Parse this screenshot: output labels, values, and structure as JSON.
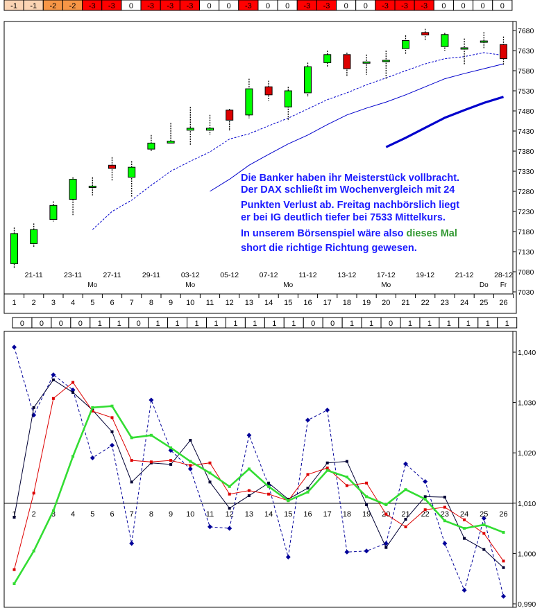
{
  "colors": {
    "orange": "#f79646",
    "light_orange": "#fbd4b4",
    "red": "#ff0000",
    "candle_up": "#00ff00",
    "candle_down": "#dd0000",
    "ma_blue": "#0000cc",
    "note_blue": "#1a1aff",
    "note_green": "#339933",
    "osc_green": "#33dd33",
    "osc_red": "#dd0000",
    "osc_black": "#000033",
    "osc_dashed": "#000099"
  },
  "top_signal_row": [
    {
      "v": "-1",
      "c": "light_orange"
    },
    {
      "v": "-1",
      "c": "light_orange"
    },
    {
      "v": "-2",
      "c": "orange"
    },
    {
      "v": "-2",
      "c": "orange"
    },
    {
      "v": "-3",
      "c": "red"
    },
    {
      "v": "-3",
      "c": "red"
    },
    {
      "v": "0",
      "c": "white"
    },
    {
      "v": "-3",
      "c": "red"
    },
    {
      "v": "-3",
      "c": "red"
    },
    {
      "v": "-3",
      "c": "red"
    },
    {
      "v": "0",
      "c": "white"
    },
    {
      "v": "0",
      "c": "white"
    },
    {
      "v": "-3",
      "c": "red"
    },
    {
      "v": "0",
      "c": "white"
    },
    {
      "v": "0",
      "c": "white"
    },
    {
      "v": "-3",
      "c": "red"
    },
    {
      "v": "-3",
      "c": "red"
    },
    {
      "v": "0",
      "c": "white"
    },
    {
      "v": "0",
      "c": "white"
    },
    {
      "v": "-3",
      "c": "red"
    },
    {
      "v": "-3",
      "c": "red"
    },
    {
      "v": "-3",
      "c": "red"
    },
    {
      "v": "0",
      "c": "white"
    },
    {
      "v": "0",
      "c": "white"
    },
    {
      "v": "0",
      "c": "white"
    },
    {
      "v": "0",
      "c": "white"
    }
  ],
  "middle_signal_row": [
    "0",
    "0",
    "0",
    "0",
    "1",
    "1",
    "0",
    "1",
    "1",
    "1",
    "1",
    "1",
    "1",
    "1",
    "1",
    "0",
    "0",
    "1",
    "1",
    "0",
    "1",
    "1",
    "1",
    "1",
    "1",
    "1"
  ],
  "note": {
    "lines": [
      "Die Banker haben ihr Meisterstück vollbracht.",
      "Der DAX schließt im Wochenvergleich mit 24",
      "Punkten Verlust ab. Freitag nachbörslich liegt",
      "er bei IG deutlich tiefer bei 7533 Mittelkurs."
    ],
    "line5_a": "In unserem  Börsenspiel wäre also ",
    "line5_b": "dieses Mal",
    "line6": "short die richtige Richtung gewesen."
  },
  "chart_data": [
    {
      "type": "candlestick",
      "title": "",
      "ylim": [
        7030,
        7680
      ],
      "y_ticks": [
        "7680",
        "7630",
        "7580",
        "7530",
        "7480",
        "7430",
        "7380",
        "7330",
        "7280",
        "7230",
        "7180",
        "7130",
        "7080",
        "7030"
      ],
      "x": [
        1,
        2,
        3,
        4,
        5,
        6,
        7,
        8,
        9,
        10,
        11,
        12,
        13,
        14,
        15,
        16,
        17,
        18,
        19,
        20,
        21,
        22,
        23,
        24,
        25,
        26
      ],
      "date_labels": [
        {
          "day": 2,
          "label": "21-11"
        },
        {
          "day": 4,
          "label": "23-11"
        },
        {
          "day": 6,
          "label": "27-11"
        },
        {
          "day": 8,
          "label": "29-11"
        },
        {
          "day": 10,
          "label": "03-12"
        },
        {
          "day": 12,
          "label": "05-12"
        },
        {
          "day": 14,
          "label": "07-12"
        },
        {
          "day": 16,
          "label": "11-12"
        },
        {
          "day": 18,
          "label": "13-12"
        },
        {
          "day": 20,
          "label": "17-12"
        },
        {
          "day": 22,
          "label": "19-12"
        },
        {
          "day": 24,
          "label": "21-12"
        },
        {
          "day": 26,
          "label": "28-12"
        }
      ],
      "weekday_labels": [
        {
          "day": 5,
          "label": "Mo"
        },
        {
          "day": 10,
          "label": "Mo"
        },
        {
          "day": 15,
          "label": "Mo"
        },
        {
          "day": 20,
          "label": "Mo"
        },
        {
          "day": 25,
          "label": "Do"
        },
        {
          "day": 26,
          "label": "Fr"
        }
      ],
      "candles": [
        {
          "o": 7100,
          "c": 7175,
          "h": 7190,
          "l": 7090
        },
        {
          "o": 7150,
          "c": 7185,
          "h": 7200,
          "l": 7140
        },
        {
          "o": 7210,
          "c": 7245,
          "h": 7255,
          "l": 7205
        },
        {
          "o": 7260,
          "c": 7310,
          "h": 7315,
          "l": 7220
        },
        {
          "o": 7290,
          "c": 7293,
          "h": 7315,
          "l": 7270
        },
        {
          "o": 7345,
          "c": 7337,
          "h": 7365,
          "l": 7305
        },
        {
          "o": 7315,
          "c": 7340,
          "h": 7355,
          "l": 7265
        },
        {
          "o": 7385,
          "c": 7400,
          "h": 7420,
          "l": 7378
        },
        {
          "o": 7400,
          "c": 7405,
          "h": 7450,
          "l": 7400
        },
        {
          "o": 7432,
          "c": 7437,
          "h": 7490,
          "l": 7395
        },
        {
          "o": 7432,
          "c": 7437,
          "h": 7470,
          "l": 7420
        },
        {
          "o": 7482,
          "c": 7457,
          "h": 7485,
          "l": 7430
        },
        {
          "o": 7470,
          "c": 7535,
          "h": 7560,
          "l": 7462
        },
        {
          "o": 7540,
          "c": 7520,
          "h": 7555,
          "l": 7505
        },
        {
          "o": 7490,
          "c": 7530,
          "h": 7540,
          "l": 7455
        },
        {
          "o": 7525,
          "c": 7590,
          "h": 7600,
          "l": 7515
        },
        {
          "o": 7600,
          "c": 7620,
          "h": 7630,
          "l": 7590
        },
        {
          "o": 7620,
          "c": 7585,
          "h": 7625,
          "l": 7565
        },
        {
          "o": 7600,
          "c": 7602,
          "h": 7620,
          "l": 7570
        },
        {
          "o": 7605,
          "c": 7606,
          "h": 7630,
          "l": 7560
        },
        {
          "o": 7635,
          "c": 7655,
          "h": 7668,
          "l": 7620
        },
        {
          "o": 7675,
          "c": 7669,
          "h": 7684,
          "l": 7655
        },
        {
          "o": 7640,
          "c": 7670,
          "h": 7674,
          "l": 7630
        },
        {
          "o": 7635,
          "c": 7637,
          "h": 7660,
          "l": 7595
        },
        {
          "o": 7652,
          "c": 7654,
          "h": 7676,
          "l": 7635
        },
        {
          "o": 7645,
          "c": 7610,
          "h": 7665,
          "l": 7595
        }
      ],
      "series": [
        {
          "style": "dotted",
          "x": [
            5,
            6,
            7,
            8,
            9,
            10,
            11,
            12,
            13,
            14,
            15,
            16,
            17,
            18,
            19,
            20,
            21,
            22,
            23,
            24,
            25,
            26
          ],
          "values": [
            7185,
            7230,
            7258,
            7295,
            7330,
            7355,
            7378,
            7410,
            7423,
            7443,
            7462,
            7485,
            7508,
            7525,
            7545,
            7562,
            7580,
            7597,
            7610,
            7615,
            7625,
            7618
          ]
        },
        {
          "style": "solid-thin",
          "x": [
            11,
            12,
            13,
            14,
            15,
            16,
            17,
            18,
            19,
            20,
            21,
            22,
            23,
            24,
            25,
            26
          ],
          "values": [
            7280,
            7310,
            7345,
            7372,
            7398,
            7420,
            7446,
            7470,
            7487,
            7502,
            7520,
            7540,
            7560,
            7573,
            7585,
            7597
          ]
        },
        {
          "style": "solid-thick",
          "x": [
            20,
            21,
            22,
            23,
            24,
            25,
            26
          ],
          "values": [
            7390,
            7413,
            7438,
            7463,
            7482,
            7500,
            7515
          ]
        }
      ]
    },
    {
      "type": "line",
      "title": "",
      "ylim": [
        0.99,
        1.043
      ],
      "y_ticks": [
        "1,040",
        "1,030",
        "1,020",
        "1,010",
        "1,000",
        "0,990"
      ],
      "x": [
        1,
        2,
        3,
        4,
        5,
        6,
        7,
        8,
        9,
        10,
        11,
        12,
        13,
        14,
        15,
        16,
        17,
        18,
        19,
        20,
        21,
        22,
        23,
        24,
        25,
        26
      ],
      "series": [
        {
          "color": "osc_dashed",
          "style": "dashed",
          "marker": "diamond",
          "values": [
            1.041,
            1.0275,
            1.0355,
            1.0325,
            1.019,
            1.0215,
            1.002,
            1.0305,
            1.0205,
            1.0168,
            1.0053,
            1.005,
            1.0235,
            1.0135,
            0.9993,
            1.0265,
            1.0285,
            1.0003,
            1.0005,
            1.002,
            1.0178,
            1.0143,
            1.002,
            0.9927,
            1.007,
            0.9915
          ]
        },
        {
          "color": "osc_black",
          "style": "solid",
          "marker": "square",
          "values": [
            1.0072,
            1.029,
            1.0345,
            1.032,
            1.0285,
            1.0242,
            1.0142,
            1.018,
            1.0177,
            1.0225,
            1.0142,
            1.009,
            1.0115,
            1.014,
            1.0108,
            1.013,
            1.018,
            1.0183,
            1.0097,
            1.0012,
            1.0068,
            1.0113,
            1.0112,
            1.003,
            1.0008,
            0.9972
          ]
        },
        {
          "color": "osc_red",
          "style": "solid",
          "marker": "square",
          "values": [
            0.9968,
            1.012,
            1.0308,
            1.034,
            1.0283,
            1.027,
            1.0185,
            1.0182,
            1.0185,
            1.0175,
            1.018,
            1.0118,
            1.0125,
            1.0118,
            1.0105,
            1.0157,
            1.017,
            1.0135,
            1.014,
            1.0078,
            1.0053,
            1.0087,
            1.0092,
            1.0067,
            1.004,
            0.9985
          ]
        },
        {
          "color": "osc_green",
          "style": "solid-thick",
          "marker": "square",
          "values": [
            0.994,
            1.0005,
            1.0085,
            1.0193,
            1.029,
            1.0293,
            1.023,
            1.0235,
            1.021,
            1.0183,
            1.016,
            1.0133,
            1.0168,
            1.0133,
            1.0105,
            1.0122,
            1.0165,
            1.0152,
            1.0113,
            1.0097,
            1.0127,
            1.0108,
            1.0065,
            1.005,
            1.0057,
            1.0042
          ]
        }
      ]
    }
  ]
}
